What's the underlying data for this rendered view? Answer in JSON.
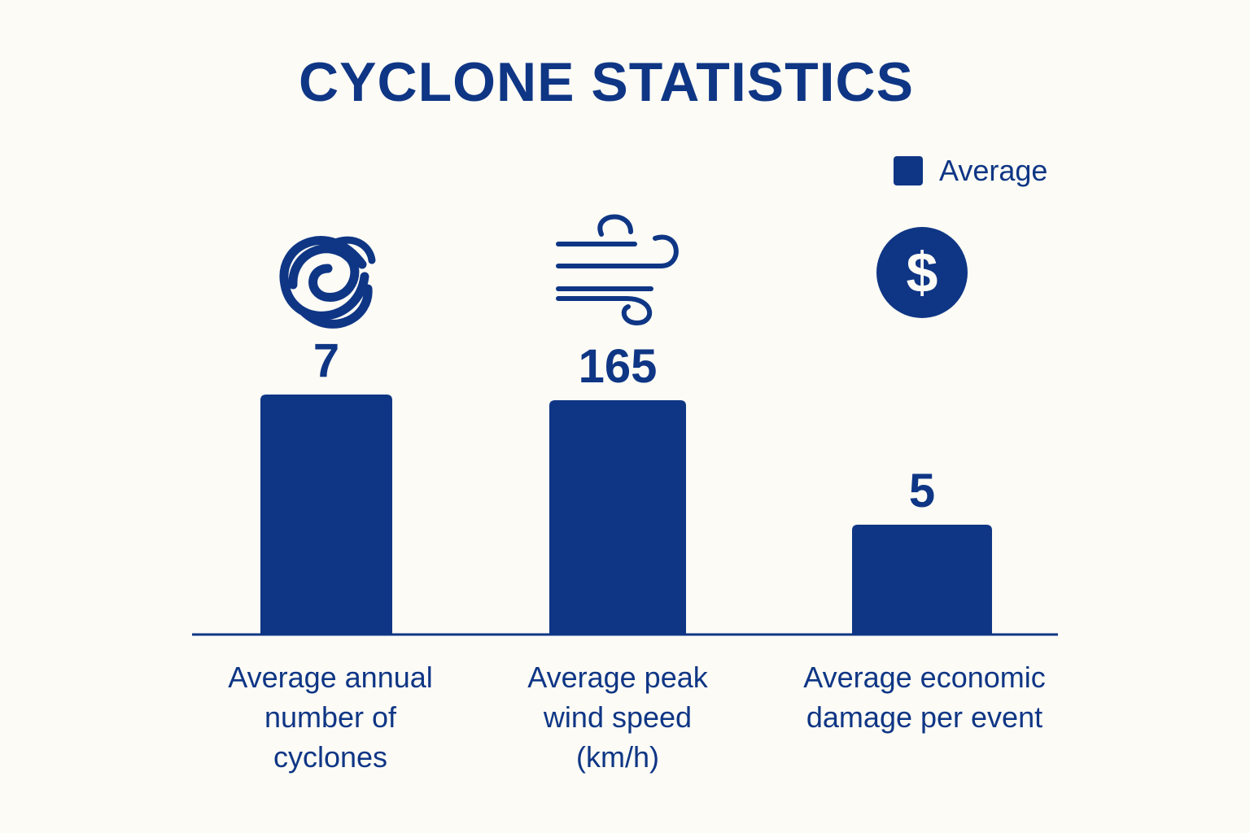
{
  "chart_data": {
    "type": "bar",
    "title": "CYCLONE STATISTICS",
    "legend": {
      "position": "top-right",
      "entries": [
        "Average"
      ]
    },
    "categories": [
      "Average annual\nnumber of\ncyclones",
      "Average peak\nwind speed\n(km/h)",
      "Average economic\ndamage per event"
    ],
    "series": [
      {
        "name": "Average",
        "values": [
          7,
          165,
          5
        ]
      }
    ],
    "category_icons": [
      "cyclone-spiral-icon",
      "wind-icon",
      "dollar-coin-icon"
    ],
    "grid": false,
    "axes_visible": false,
    "colors": {
      "bar": "#0f3685",
      "text": "#0f3685",
      "background": "#fcfbf6"
    }
  }
}
